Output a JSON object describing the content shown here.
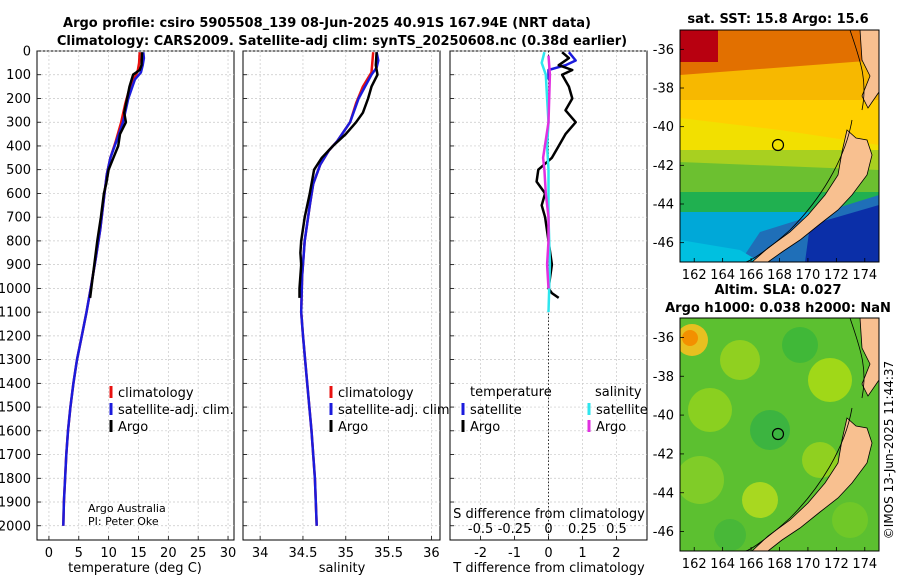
{
  "title": {
    "line1": "Argo profile: csiro 5905508_139 08-Jun-2025 40.91S 167.94E (NRT data)",
    "line2": "Climatology: CARS2009. Satellite-adj clim: synTS_20250608.nc (0.38d earlier)"
  },
  "credit": {
    "line1": "Argo Australia",
    "line2": "PI: Peter Oke"
  },
  "stamp": "©IMOS 13-Jun-2025 11:44:37",
  "colors": {
    "red": "#e8110f",
    "blue": "#1b1bdc",
    "black": "#000000",
    "cyan": "#2ee6ee",
    "magenta": "#e030e0"
  },
  "chart_data": [
    {
      "type": "line",
      "xlabel": "temperature (deg C)",
      "ylabel": "",
      "xlim": [
        -2,
        31
      ],
      "ylim": [
        2060,
        0
      ],
      "xticks": [
        0,
        5,
        10,
        15,
        20,
        25,
        30
      ],
      "yticks": [
        0,
        100,
        200,
        300,
        400,
        500,
        600,
        700,
        800,
        900,
        1000,
        1100,
        1200,
        1300,
        1400,
        1500,
        1600,
        1700,
        1800,
        1900,
        2000
      ],
      "legend": [
        "climatology",
        "satellite-adj. clim.",
        "Argo"
      ],
      "series": [
        {
          "name": "climatology",
          "color": "red",
          "points": [
            [
              15.2,
              5
            ],
            [
              15.1,
              50
            ],
            [
              14.9,
              80
            ],
            [
              14.6,
              100
            ],
            [
              13.6,
              150
            ],
            [
              12.8,
              220
            ],
            [
              12.1,
              300
            ],
            [
              11.2,
              380
            ],
            [
              10.3,
              450
            ],
            [
              9.7,
              520
            ],
            [
              9.3,
              600
            ],
            [
              8.6,
              750
            ],
            [
              7.8,
              880
            ],
            [
              7.0,
              1000
            ],
            [
              6.3,
              1100
            ],
            [
              5.5,
              1200
            ],
            [
              4.7,
              1300
            ],
            [
              4.1,
              1400
            ],
            [
              3.6,
              1500
            ],
            [
              3.2,
              1600
            ],
            [
              2.9,
              1700
            ],
            [
              2.7,
              1800
            ],
            [
              2.5,
              1900
            ],
            [
              2.4,
              2000
            ]
          ]
        },
        {
          "name": "satellite-adj. clim.",
          "color": "blue",
          "points": [
            [
              15.8,
              5
            ],
            [
              15.9,
              30
            ],
            [
              15.7,
              60
            ],
            [
              15.4,
              90
            ],
            [
              14.4,
              120
            ],
            [
              13.3,
              200
            ],
            [
              12.4,
              300
            ],
            [
              11.3,
              380
            ],
            [
              10.3,
              450
            ],
            [
              9.7,
              520
            ],
            [
              9.3,
              600
            ],
            [
              8.6,
              750
            ],
            [
              7.8,
              880
            ],
            [
              7.0,
              1000
            ],
            [
              6.3,
              1100
            ],
            [
              5.5,
              1200
            ],
            [
              4.7,
              1300
            ],
            [
              4.1,
              1400
            ],
            [
              3.6,
              1500
            ],
            [
              3.2,
              1600
            ],
            [
              2.9,
              1700
            ],
            [
              2.7,
              1800
            ],
            [
              2.5,
              1900
            ],
            [
              2.4,
              2000
            ]
          ]
        },
        {
          "name": "Argo",
          "color": "black",
          "points": [
            [
              15.6,
              5
            ],
            [
              15.5,
              60
            ],
            [
              15.2,
              80
            ],
            [
              14.1,
              100
            ],
            [
              13.5,
              150
            ],
            [
              13.1,
              200
            ],
            [
              12.6,
              260
            ],
            [
              12.9,
              300
            ],
            [
              11.9,
              350
            ],
            [
              11.6,
              400
            ],
            [
              10.8,
              450
            ],
            [
              10.0,
              500
            ],
            [
              9.6,
              560
            ],
            [
              9.2,
              600
            ],
            [
              8.7,
              700
            ],
            [
              8.1,
              800
            ],
            [
              7.6,
              900
            ],
            [
              7.2,
              980
            ],
            [
              6.9,
              1040
            ]
          ]
        }
      ]
    },
    {
      "type": "line",
      "xlabel": "salinity",
      "xlim": [
        33.8,
        36.1
      ],
      "ylim": [
        2060,
        0
      ],
      "xticks": [
        34,
        34.5,
        35,
        35.5,
        36
      ],
      "legend": [
        "climatology",
        "satellite-adj. clim.",
        "Argo"
      ],
      "series": [
        {
          "name": "climatology",
          "color": "red",
          "points": [
            [
              35.32,
              5
            ],
            [
              35.31,
              50
            ],
            [
              35.3,
              90
            ],
            [
              35.2,
              150
            ],
            [
              35.12,
              220
            ],
            [
              35.05,
              300
            ],
            [
              34.9,
              380
            ],
            [
              34.8,
              420
            ],
            [
              34.7,
              480
            ],
            [
              34.62,
              560
            ],
            [
              34.58,
              650
            ],
            [
              34.52,
              800
            ],
            [
              34.49,
              950
            ],
            [
              34.48,
              1100
            ],
            [
              34.5,
              1200
            ],
            [
              34.55,
              1400
            ],
            [
              34.6,
              1600
            ],
            [
              34.64,
              1800
            ],
            [
              34.66,
              2000
            ]
          ]
        },
        {
          "name": "satellite-adj. clim.",
          "color": "blue",
          "points": [
            [
              35.36,
              5
            ],
            [
              35.38,
              40
            ],
            [
              35.36,
              70
            ],
            [
              35.3,
              100
            ],
            [
              35.15,
              200
            ],
            [
              35.05,
              300
            ],
            [
              34.9,
              380
            ],
            [
              34.8,
              420
            ],
            [
              34.7,
              480
            ],
            [
              34.62,
              560
            ],
            [
              34.58,
              650
            ],
            [
              34.52,
              800
            ],
            [
              34.49,
              950
            ],
            [
              34.48,
              1100
            ],
            [
              34.5,
              1200
            ],
            [
              34.55,
              1400
            ],
            [
              34.6,
              1600
            ],
            [
              34.64,
              1800
            ],
            [
              34.66,
              2000
            ]
          ]
        },
        {
          "name": "Argo",
          "color": "black",
          "points": [
            [
              35.36,
              5
            ],
            [
              35.35,
              60
            ],
            [
              35.37,
              100
            ],
            [
              35.3,
              150
            ],
            [
              35.26,
              200
            ],
            [
              35.2,
              260
            ],
            [
              35.12,
              300
            ],
            [
              35.0,
              350
            ],
            [
              34.85,
              400
            ],
            [
              34.72,
              450
            ],
            [
              34.63,
              500
            ],
            [
              34.58,
              600
            ],
            [
              34.52,
              700
            ],
            [
              34.48,
              800
            ],
            [
              34.47,
              850
            ],
            [
              34.48,
              900
            ],
            [
              34.46,
              1000
            ],
            [
              34.46,
              1040
            ]
          ]
        }
      ]
    },
    {
      "type": "line",
      "xlabel": "T difference from climatology",
      "xlabel_top": "S difference from climatology",
      "xlim": [
        -2.9,
        2.9
      ],
      "ylim": [
        2060,
        0
      ],
      "xticks": [
        -2,
        -1,
        0,
        1,
        2
      ],
      "xticks_top": [
        -0.5,
        -0.25,
        0,
        0.25,
        0.5
      ],
      "legend_title_left": "temperature",
      "legend_title_right": "salinity",
      "legend_left": [
        "satellite",
        "Argo"
      ],
      "legend_right": [
        "satellite",
        "Argo"
      ],
      "series": [
        {
          "name": "temperature satellite",
          "color": "blue",
          "points": [
            [
              0.6,
              5
            ],
            [
              0.8,
              40
            ],
            [
              0.5,
              60
            ],
            [
              0.0,
              80
            ],
            [
              0.0,
              120
            ]
          ]
        },
        {
          "name": "temperature Argo",
          "color": "black",
          "points": [
            [
              0.4,
              5
            ],
            [
              0.6,
              30
            ],
            [
              0.3,
              60
            ],
            [
              0.7,
              80
            ],
            [
              0.4,
              100
            ],
            [
              0.6,
              150
            ],
            [
              0.7,
              200
            ],
            [
              0.5,
              250
            ],
            [
              0.8,
              300
            ],
            [
              0.5,
              350
            ],
            [
              0.3,
              400
            ],
            [
              0.1,
              450
            ],
            [
              -0.3,
              500
            ],
            [
              -0.35,
              550
            ],
            [
              -0.1,
              600
            ],
            [
              -0.2,
              650
            ],
            [
              -0.1,
              700
            ],
            [
              0.0,
              800
            ],
            [
              0.1,
              900
            ],
            [
              0.0,
              1000
            ],
            [
              0.1,
              1020
            ],
            [
              0.3,
              1040
            ]
          ]
        },
        {
          "name": "salinity satellite",
          "color": "cyan",
          "points": [
            [
              -0.03,
              5
            ],
            [
              -0.05,
              50
            ],
            [
              -0.02,
              100
            ],
            [
              -0.01,
              200
            ],
            [
              0.0,
              300
            ],
            [
              -0.01,
              400
            ],
            [
              0.0,
              500
            ],
            [
              0.0,
              700
            ],
            [
              0.01,
              900
            ],
            [
              0.0,
              1100
            ]
          ]
        },
        {
          "name": "salinity Argo",
          "color": "magenta",
          "points": [
            [
              0.0,
              20
            ],
            [
              0.01,
              100
            ],
            [
              0.0,
              300
            ],
            [
              -0.04,
              450
            ],
            [
              -0.03,
              500
            ],
            [
              -0.02,
              600
            ],
            [
              0.0,
              700
            ],
            [
              0.0,
              800
            ],
            [
              -0.01,
              900
            ],
            [
              0.0,
              1000
            ]
          ]
        }
      ]
    },
    {
      "type": "heatmap",
      "title": "sat. SST: 15.8 Argo: 15.6",
      "xticks": [
        162,
        164,
        166,
        168,
        170,
        172,
        174
      ],
      "yticks": [
        -36,
        -38,
        -40,
        -42,
        -44,
        -46
      ],
      "xlim": [
        161,
        175
      ],
      "ylim": [
        -47,
        -35
      ],
      "marker": [
        167.94,
        -40.91
      ]
    },
    {
      "type": "heatmap",
      "title_line1": "Altim. SLA: 0.027",
      "title_line2": "Argo h1000: 0.038 h2000: NaN",
      "xticks": [
        162,
        164,
        166,
        168,
        170,
        172,
        174
      ],
      "yticks": [
        -36,
        -38,
        -40,
        -42,
        -44,
        -46
      ],
      "xlim": [
        161,
        175
      ],
      "ylim": [
        -47,
        -35
      ],
      "marker": [
        167.94,
        -40.91
      ]
    }
  ]
}
